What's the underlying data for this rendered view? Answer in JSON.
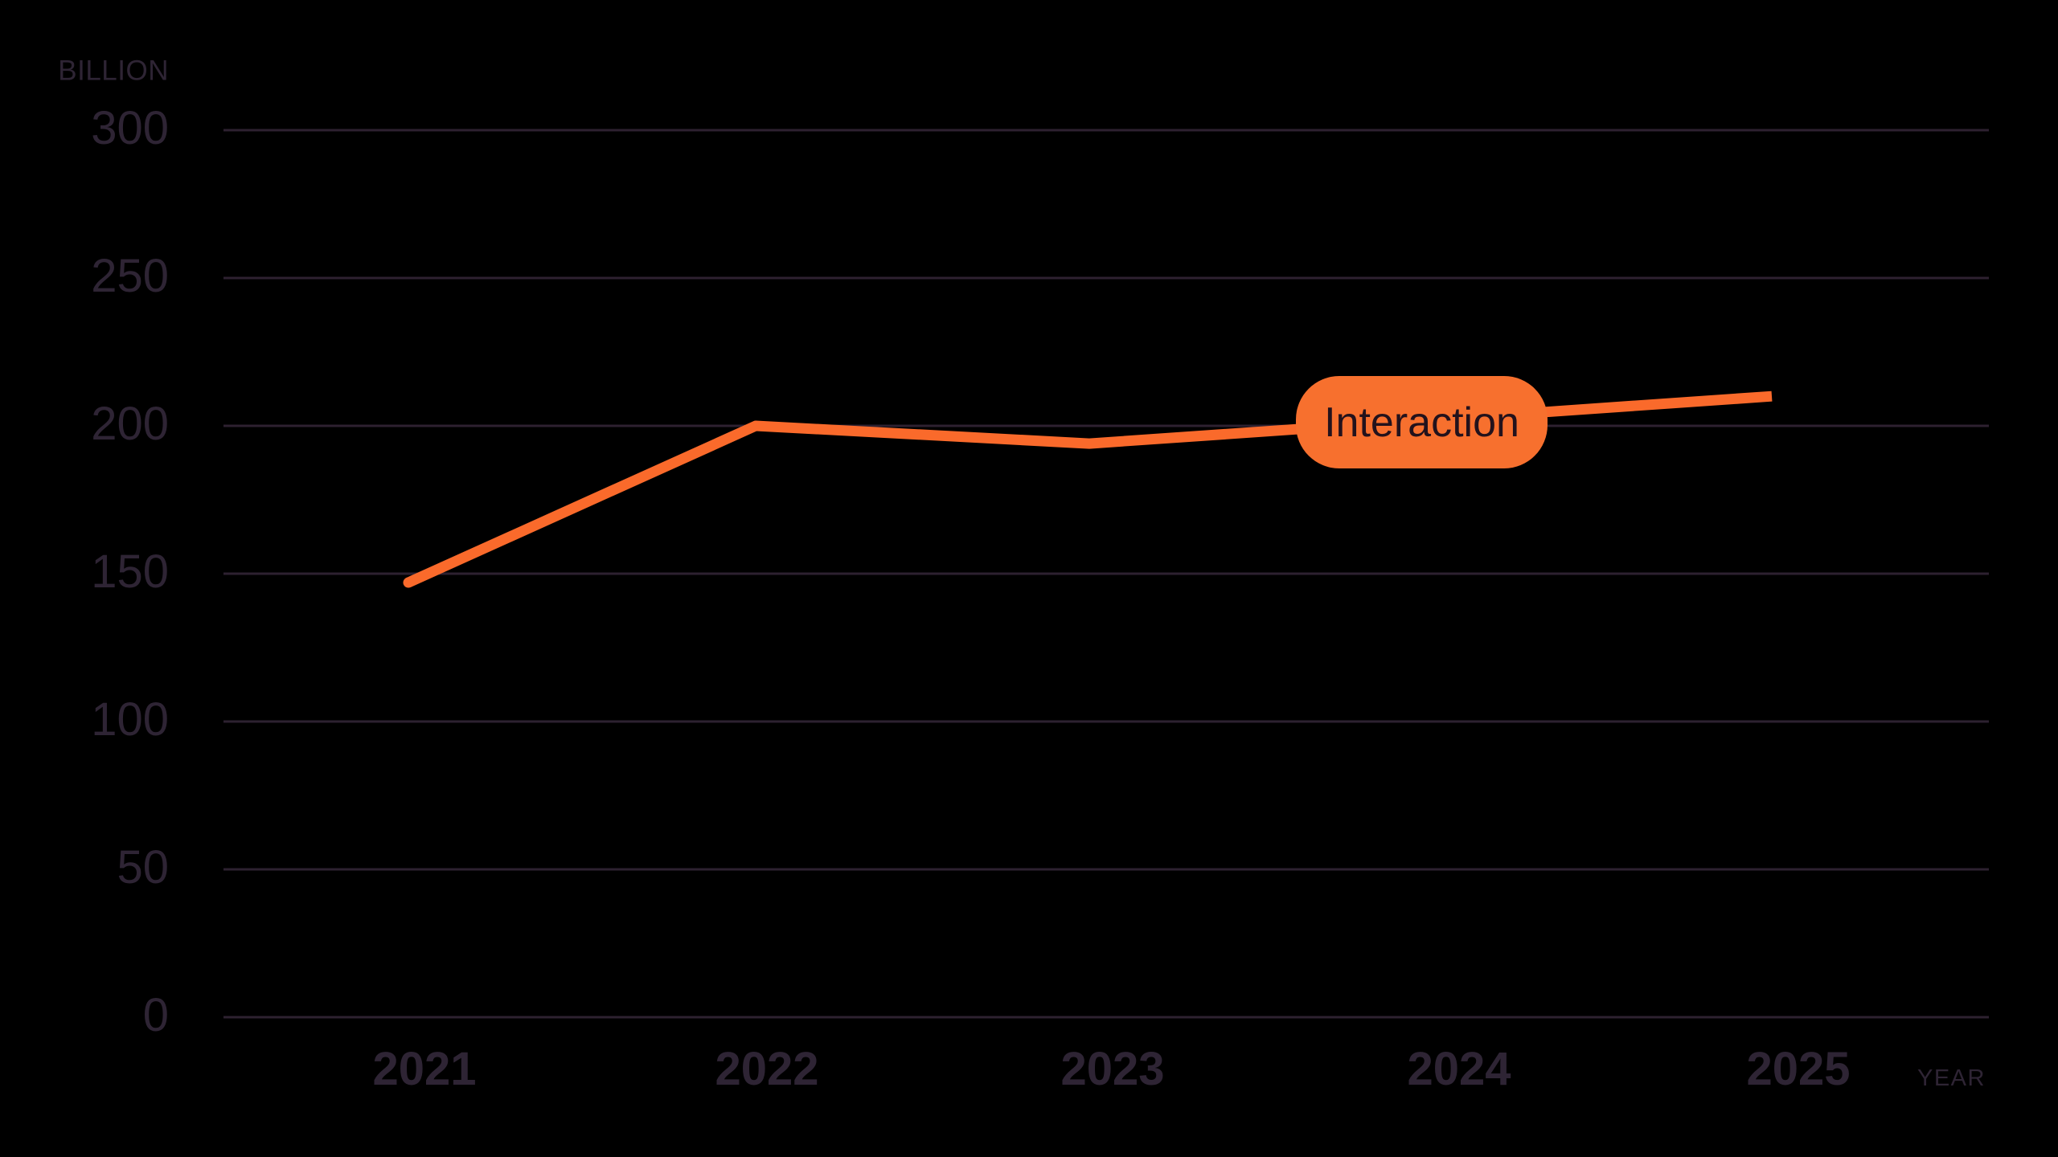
{
  "chart_data": {
    "type": "line",
    "title": "",
    "unit_label": "BILLION",
    "x_axis_label": "YEAR",
    "categories": [
      "2021",
      "2022",
      "2023",
      "2024",
      "2025"
    ],
    "yticks": [
      0,
      50,
      100,
      150,
      200,
      250,
      300
    ],
    "ylim": [
      0,
      300
    ],
    "grid": "horizontal-only",
    "legend_position": "inline-badge-on-line",
    "series": [
      {
        "name": "Interaction",
        "values": [
          147,
          200,
          194,
          202,
          210
        ]
      }
    ],
    "annotation_badge": {
      "label": "Interaction",
      "attached_between": "2023 and 2024"
    },
    "colors": {
      "background": "#000000",
      "line": "#fa6a2b",
      "badge_fill": "#f7702e",
      "badge_text": "#23121c",
      "axis_text": "#2e2434",
      "gridline": "#2d2130"
    }
  }
}
